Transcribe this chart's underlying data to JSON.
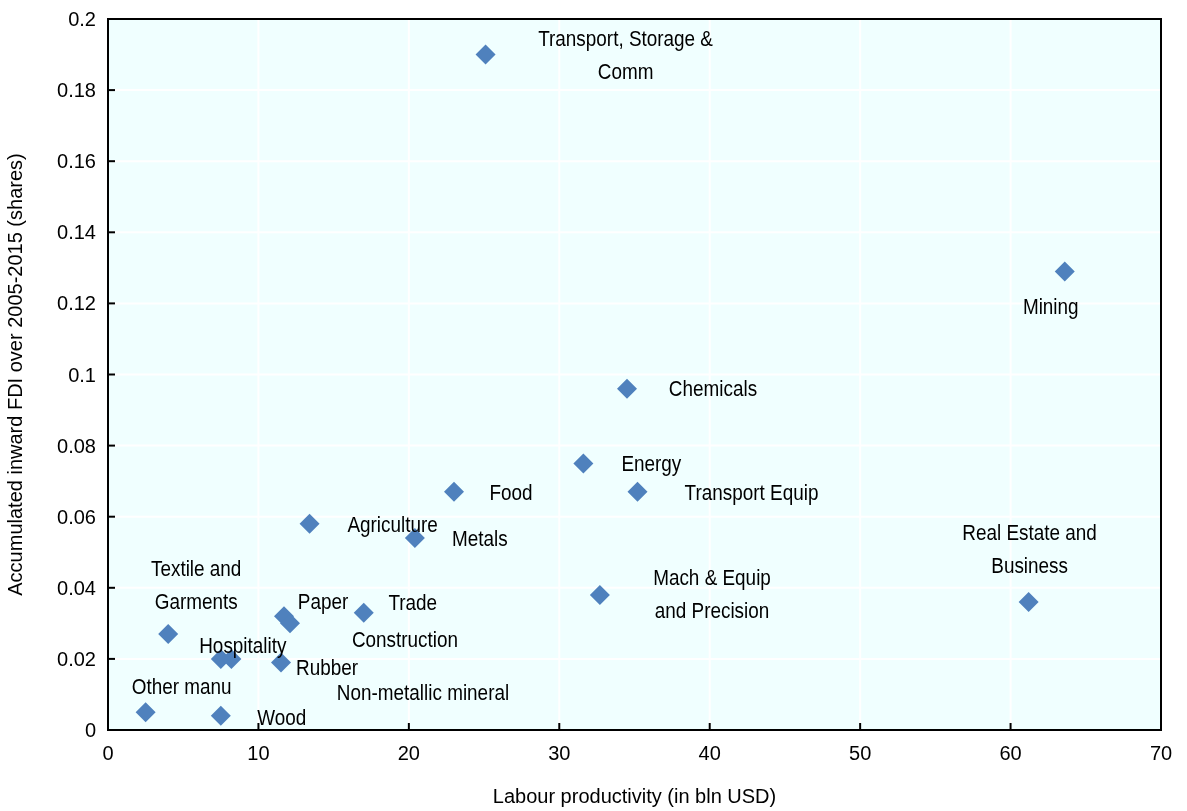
{
  "chart_data": {
    "type": "scatter",
    "xlabel": "Labour productivity (in bln USD)",
    "ylabel": "Accumulated inward FDI over 2005-2015 (shares)",
    "xlim": [
      0,
      70
    ],
    "xticks": [
      0,
      10,
      20,
      30,
      40,
      50,
      60,
      70
    ],
    "ylim": [
      0,
      0.2
    ],
    "yticks": [
      0,
      0.02,
      0.04,
      0.06,
      0.08,
      0.1,
      0.12,
      0.14,
      0.16,
      0.18,
      0.2
    ],
    "grid": true,
    "marker": "diamond",
    "series": [
      {
        "color": "#4f81bd",
        "x": [
          25.1,
          63.6,
          34.5,
          31.6,
          23.0,
          35.2,
          13.4,
          20.4,
          61.2,
          32.7,
          4.0,
          11.7,
          12.1,
          17.0,
          7.5,
          8.2,
          11.5,
          2.5,
          7.5
        ],
        "values": [
          0.19,
          0.129,
          0.096,
          0.075,
          0.067,
          0.067,
          0.058,
          0.054,
          0.036,
          0.038,
          0.027,
          0.032,
          0.03,
          0.033,
          0.02,
          0.02,
          0.019,
          0.005,
          0.004
        ]
      }
    ],
    "annotations": [
      {
        "text": "Transport, Storage & Comm",
        "x": 25.1,
        "y": 0.19
      },
      {
        "text": "Mining",
        "x": 63.6,
        "y": 0.129
      },
      {
        "text": "Chemicals",
        "x": 34.5,
        "y": 0.096
      },
      {
        "text": "Energy",
        "x": 31.6,
        "y": 0.075
      },
      {
        "text": "Food",
        "x": 23.0,
        "y": 0.067
      },
      {
        "text": "Transport Equip",
        "x": 35.2,
        "y": 0.067
      },
      {
        "text": "Agriculture",
        "x": 13.4,
        "y": 0.058
      },
      {
        "text": "Metals",
        "x": 20.4,
        "y": 0.054
      },
      {
        "text": "Real Estate and Business",
        "x": 61.2,
        "y": 0.036
      },
      "Mach & Equip and Precision",
      {
        "text": "Textile and Garments",
        "x": 4.0,
        "y": 0.027
      },
      {
        "text": "Paper",
        "x": 11.7,
        "y": 0.032
      },
      "Construction",
      {
        "text": "Trade",
        "x": 17.0,
        "y": 0.033
      },
      {
        "text": "Hospitality",
        "x": 7.5,
        "y": 0.02
      },
      "Non-metallic mineral",
      {
        "text": "Rubber",
        "x": 11.5,
        "y": 0.019
      },
      {
        "text": "Other manu",
        "x": 2.5,
        "y": 0.005
      },
      {
        "text": "Wood",
        "x": 7.5,
        "y": 0.004
      }
    ]
  }
}
